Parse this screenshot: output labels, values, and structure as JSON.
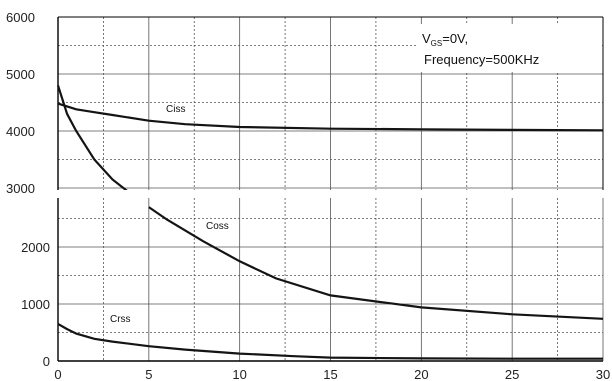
{
  "chart_data": {
    "type": "line",
    "title": "",
    "xlabel": "",
    "ylabel": "",
    "xlim": [
      0,
      30
    ],
    "ylim": [
      0,
      6000
    ],
    "grid": true,
    "x_ticks": [
      "0",
      "5",
      "10",
      "15",
      "20",
      "25",
      "30"
    ],
    "y_ticks_top": [
      "3000",
      "4000",
      "5000",
      "6000"
    ],
    "y_ticks_bottom": [
      "0",
      "1000",
      "2000"
    ],
    "annotation": {
      "line1_main": "V",
      "line1_sub": "GS",
      "line1_rest": "=0V,",
      "line2": "Frequency=500KHz"
    },
    "series": [
      {
        "name": "Ciss",
        "x": [
          0,
          1,
          2,
          3,
          5,
          7,
          10,
          15,
          20,
          25,
          30
        ],
        "y": [
          4480,
          4380,
          4330,
          4280,
          4180,
          4120,
          4070,
          4040,
          4030,
          4020,
          4010
        ]
      },
      {
        "name": "Coss",
        "x": [
          0,
          0.5,
          1,
          2,
          3,
          4,
          5,
          6,
          8,
          10,
          12,
          15,
          20,
          25,
          30
        ],
        "y": [
          4800,
          4300,
          4000,
          3500,
          3150,
          2900,
          2700,
          2480,
          2100,
          1750,
          1450,
          1150,
          940,
          820,
          740
        ]
      },
      {
        "name": "Crss",
        "x": [
          0,
          0.5,
          1,
          2,
          3,
          5,
          7,
          10,
          13,
          15,
          20,
          25,
          30
        ],
        "y": [
          650,
          560,
          480,
          390,
          340,
          260,
          200,
          130,
          85,
          60,
          45,
          40,
          40
        ]
      }
    ],
    "colors": {
      "grid": "#555555",
      "line": "#141414",
      "axis": "#000000"
    }
  }
}
